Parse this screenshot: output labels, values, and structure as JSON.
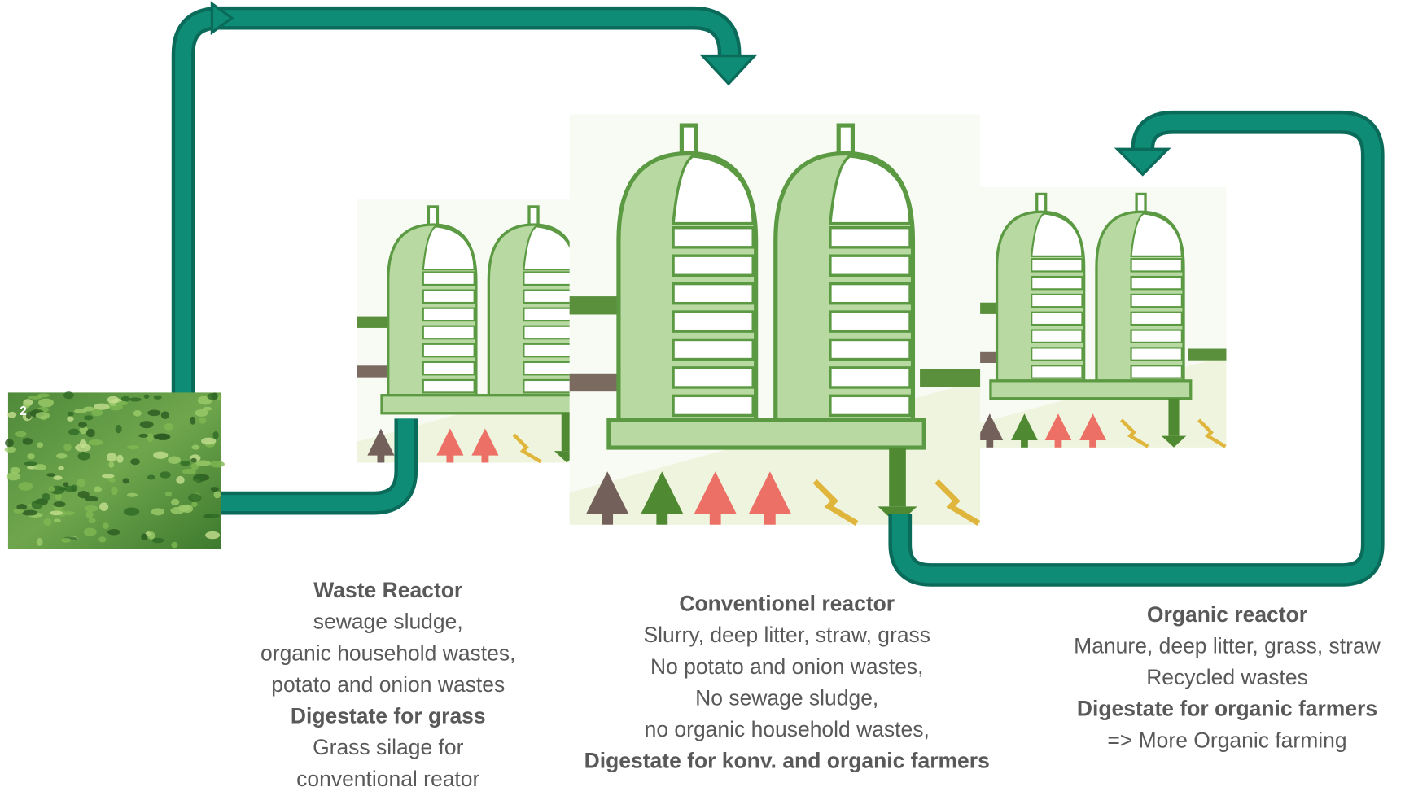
{
  "image_label": "2",
  "captions": [
    {
      "lines": [
        {
          "text": "Waste Reactor",
          "bold": true
        },
        {
          "text": "sewage sludge,",
          "bold": false
        },
        {
          "text": "organic household wastes,",
          "bold": false
        },
        {
          "text": "potato and onion wastes",
          "bold": false
        },
        {
          "text": "Digestate for grass",
          "bold": true
        },
        {
          "text": "Grass silage for",
          "bold": false
        },
        {
          "text": "conventional reator",
          "bold": false
        }
      ]
    },
    {
      "lines": [
        {
          "text": "Conventionel reactor",
          "bold": true
        },
        {
          "text": "Slurry, deep litter, straw, grass",
          "bold": false
        },
        {
          "text": "No potato and onion wastes,",
          "bold": false
        },
        {
          "text": "No sewage sludge,",
          "bold": false
        },
        {
          "text": "no organic household wastes,",
          "bold": false
        },
        {
          "text": "Digestate for konv. and organic farmers",
          "bold": true
        }
      ]
    },
    {
      "lines": [
        {
          "text": "Organic reactor",
          "bold": true
        },
        {
          "text": "Manure, deep litter, grass, straw",
          "bold": false
        },
        {
          "text": "Recycled wastes",
          "bold": false
        },
        {
          "text": "Digestate for organic farmers",
          "bold": true
        },
        {
          "text": "=> More Organic farming",
          "bold": false
        }
      ]
    }
  ]
}
